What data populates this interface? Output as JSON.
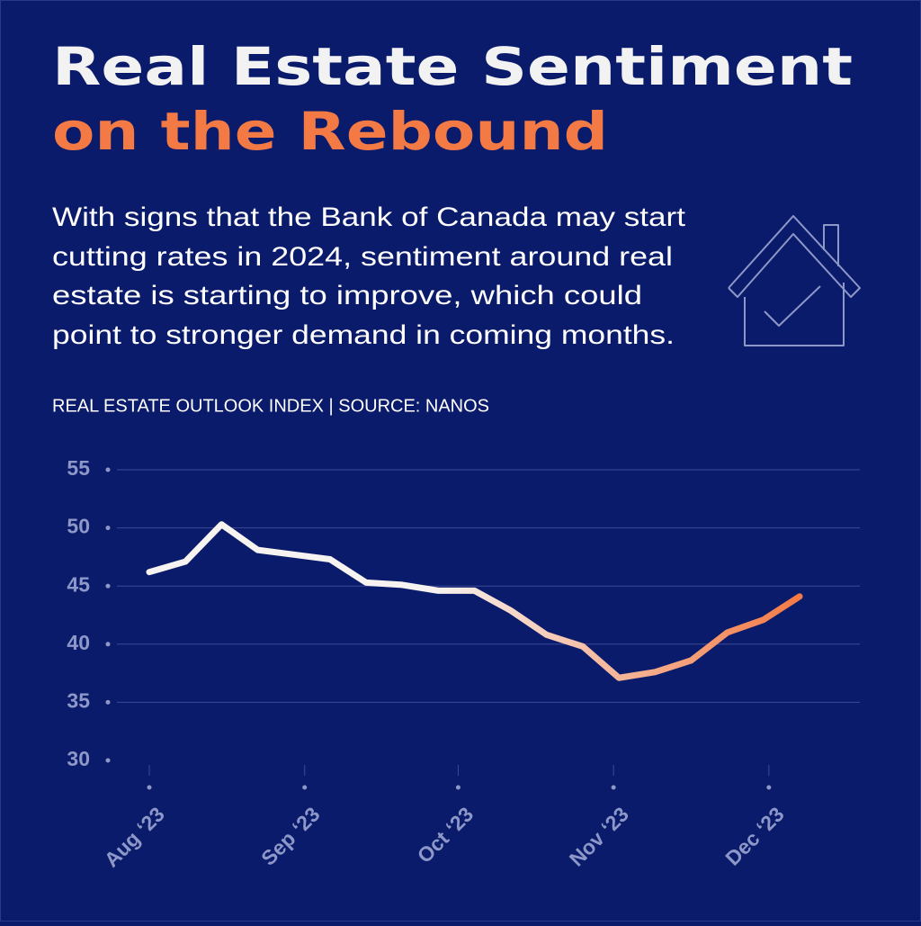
{
  "title_lines": [
    "Real Estate Sentiment",
    "on the Rebound"
  ],
  "body_lines": [
    "With signs that the Bank of Canada may start",
    "cutting rates in 2024, sentiment around real",
    "estate is starting to improve, which could",
    "point to stronger demand in coming months."
  ],
  "chart_data": {
    "type": "line",
    "subtitle": "REAL ESTATE OUTLOOK INDEX  | SOURCE: NANOS",
    "x": [
      0,
      1,
      2,
      3,
      4,
      5,
      6,
      7,
      8,
      9,
      10,
      11,
      12,
      13,
      14,
      15,
      16,
      17,
      18
    ],
    "series": [
      {
        "name": "Real Estate Outlook Index",
        "colors": [
          "#f6f3f0",
          "#f47a45"
        ],
        "values": [
          46.2,
          47.1,
          50.3,
          48.1,
          47.7,
          47.3,
          45.3,
          45.1,
          44.6,
          44.6,
          42.9,
          40.8,
          39.8,
          37.1,
          37.6,
          38.6,
          41.0,
          42.1,
          44.1
        ]
      }
    ],
    "xlim": [
      0,
      18
    ],
    "xticks": [
      {
        "value": 0,
        "label": "Aug ‘23"
      },
      {
        "value": 4.3,
        "label": "Sep ‘23"
      },
      {
        "value": 8.55,
        "label": "Oct ‘23"
      },
      {
        "value": 12.85,
        "label": "Nov ‘23"
      },
      {
        "value": 17.15,
        "label": "Dec ‘23"
      }
    ],
    "ylim": [
      30,
      55
    ],
    "yticks": [
      30,
      35,
      40,
      45,
      50,
      55
    ],
    "grid": true
  }
}
